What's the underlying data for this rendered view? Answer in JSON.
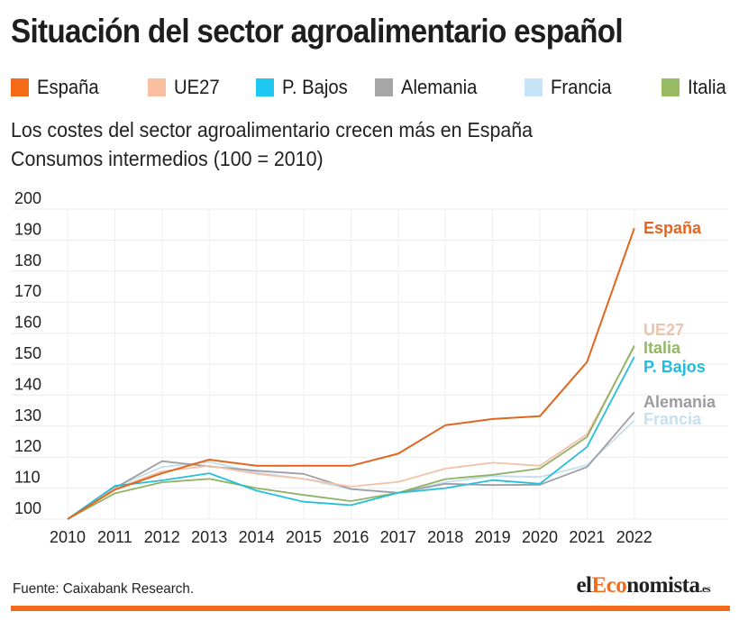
{
  "header": {
    "title": "Situación del sector agroalimentario español"
  },
  "legend": [
    {
      "label": "España",
      "color": "#f46a17"
    },
    {
      "label": "UE27",
      "color": "#f9bfa0"
    },
    {
      "label": "P. Bajos",
      "color": "#1ec8f0"
    },
    {
      "label": "Alemania",
      "color": "#a6a6a6"
    },
    {
      "label": "Francia",
      "color": "#c7e4f5"
    },
    {
      "label": "Italia",
      "color": "#99bb63"
    }
  ],
  "subtitle": {
    "line1": "Los costes del sector agroalimentario crecen más en España",
    "line2": "Consumos intermedios (100 = 2010)"
  },
  "chart_data": {
    "type": "line",
    "title": "Los costes del sector agroalimentario crecen más en España",
    "subtitle": "Consumos intermedios (100 = 2010)",
    "xlabel": "",
    "ylabel": "",
    "x": [
      "2010",
      "2011",
      "2012",
      "2013",
      "2014",
      "2015",
      "2016",
      "2017",
      "2018",
      "2019",
      "2020",
      "2021",
      "2022"
    ],
    "ylim": [
      100,
      200
    ],
    "yticks": [
      100,
      110,
      120,
      130,
      140,
      150,
      160,
      170,
      180,
      190,
      200
    ],
    "grid": true,
    "legend_position": "top",
    "series": [
      {
        "name": "España",
        "color": "#e0661f",
        "label_color": "#e8641c",
        "values": [
          100,
          109.5,
          114.8,
          119.2,
          117.2,
          117.2,
          117.2,
          121.1,
          130.3,
          132.3,
          133.2,
          150.7,
          193.8
        ]
      },
      {
        "name": "UE27",
        "color": "#f2c3a8",
        "label_color": "#ecc4ae",
        "values": [
          100,
          109.8,
          115.4,
          117.2,
          114.6,
          113.0,
          110.5,
          112.0,
          116.3,
          118.2,
          117.2,
          127.4,
          155.5
        ]
      },
      {
        "name": "P. Bajos",
        "color": "#25bfd9",
        "label_color": "#1fbde0",
        "values": [
          100,
          110.7,
          112.5,
          114.8,
          109.2,
          105.6,
          104.5,
          108.5,
          110.0,
          112.6,
          111.4,
          123.3,
          152.3
        ]
      },
      {
        "name": "Alemania",
        "color": "#9e9ea6",
        "label_color": "#9c9ca0",
        "values": [
          100,
          110.0,
          118.7,
          117.0,
          115.6,
          114.6,
          109.7,
          108.5,
          111.4,
          111.0,
          111.1,
          116.8,
          134.5
        ]
      },
      {
        "name": "Francia",
        "color": "#c4dfee",
        "label_color": "#c6e1f1",
        "values": [
          100,
          110.3,
          116.8,
          118.5,
          115.0,
          113.0,
          109.7,
          108.5,
          111.9,
          113.9,
          113.6,
          117.4,
          131.8
        ]
      },
      {
        "name": "Italia",
        "color": "#90b366",
        "label_color": "#93b864",
        "values": [
          100,
          108.3,
          111.9,
          113.0,
          110.0,
          107.8,
          105.8,
          108.5,
          112.9,
          114.3,
          116.3,
          126.5,
          156.0
        ]
      }
    ],
    "end_labels": [
      "España",
      "UE27",
      "Italia",
      "P. Bajos",
      "Alemania",
      "Francia"
    ]
  },
  "footer": {
    "source": "Fuente:  Caixabank Research.",
    "logo": {
      "part1": "el",
      "part2": "Eco",
      "part3": "nomista",
      "part4": ".es"
    },
    "accent_color": "#f26a1b"
  }
}
